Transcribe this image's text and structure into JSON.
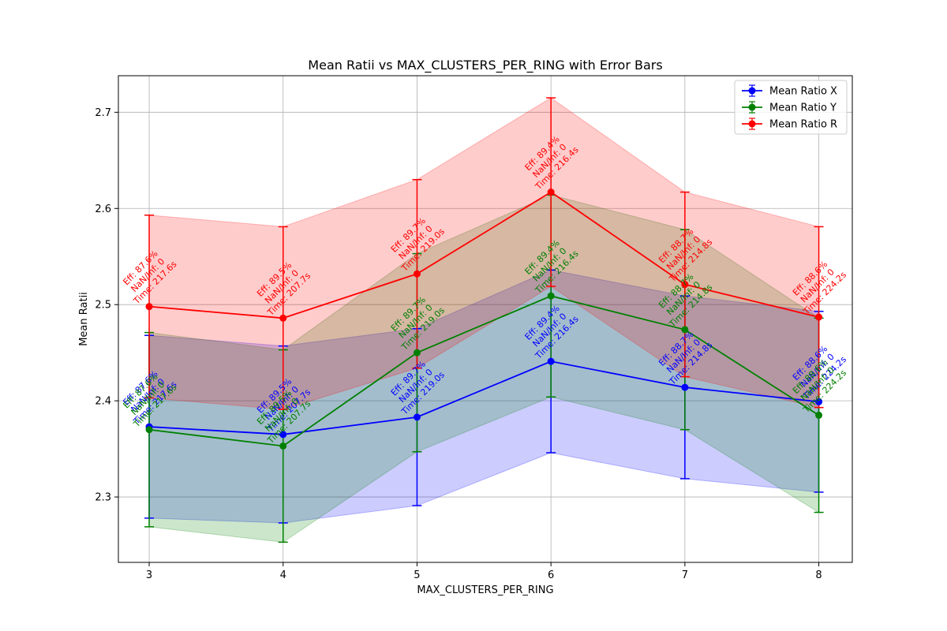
{
  "chart_data": {
    "type": "line",
    "title": "Mean Ratii vs MAX_CLUSTERS_PER_RING with Error Bars",
    "xlabel": "MAX_CLUSTERS_PER_RING",
    "ylabel": "Mean Ratii",
    "x": [
      3,
      4,
      5,
      6,
      7,
      8
    ],
    "xlim": [
      2.77,
      8.25
    ],
    "ylim": [
      2.232,
      2.738
    ],
    "xticks": [
      3,
      4,
      5,
      6,
      7,
      8
    ],
    "yticks": [
      2.3,
      2.4,
      2.5,
      2.6,
      2.7
    ],
    "ytick_labels": [
      "2.3",
      "2.4",
      "2.5",
      "2.6",
      "2.7"
    ],
    "grid": true,
    "legend_position": "top-right",
    "series": [
      {
        "name": "Mean Ratio X",
        "color": "#0000ff",
        "values": [
          2.373,
          2.365,
          2.383,
          2.441,
          2.414,
          2.399
        ],
        "errors": [
          0.095,
          0.092,
          0.092,
          0.095,
          0.095,
          0.094
        ],
        "annotations": [
          [
            "Eff: 87.6%",
            "NaN/Inf: 0",
            "Time: 217.6s"
          ],
          [
            "Eff: 89.5%",
            "NaN/Inf: 0",
            "Time: 207.7s"
          ],
          [
            "Eff: 89.7%",
            "NaN/Inf: 0",
            "Time: 219.0s"
          ],
          [
            "Eff: 89.4%",
            "NaN/Inf: 0",
            "Time: 216.4s"
          ],
          [
            "Eff: 88.7%",
            "NaN/Inf: 0",
            "Time: 214.8s"
          ],
          [
            "Eff: 88.6%",
            "NaN/Inf: 0",
            "Time: 224.2s"
          ]
        ]
      },
      {
        "name": "Mean Ratio Y",
        "color": "#008000",
        "values": [
          2.37,
          2.353,
          2.45,
          2.509,
          2.474,
          2.385
        ],
        "errors": [
          0.101,
          0.1,
          0.103,
          0.105,
          0.104,
          0.101
        ],
        "annotations": [
          [
            "Eff: 87.6%",
            "NaN/Inf: 0",
            "Time: 217.6s"
          ],
          [
            "Eff: 89.5%",
            "NaN/Inf: 0",
            "Time: 207.7s"
          ],
          [
            "Eff: 89.7%",
            "NaN/Inf: 0",
            "Time: 219.0s"
          ],
          [
            "Eff: 89.4%",
            "NaN/Inf: 0",
            "Time: 216.4s"
          ],
          [
            "Eff: 88.7%",
            "NaN/Inf: 0",
            "Time: 214.8s"
          ],
          [
            "Eff: 88.6%",
            "NaN/Inf: 0",
            "Time: 224.2s"
          ]
        ]
      },
      {
        "name": "Mean Ratio R",
        "color": "#ff0000",
        "values": [
          2.498,
          2.486,
          2.532,
          2.617,
          2.521,
          2.487
        ],
        "errors": [
          0.095,
          0.095,
          0.098,
          0.098,
          0.096,
          0.094
        ],
        "annotations": [
          [
            "Eff: 87.6%",
            "NaN/Inf: 0",
            "Time: 217.6s"
          ],
          [
            "Eff: 89.5%",
            "NaN/Inf: 0",
            "Time: 207.7s"
          ],
          [
            "Eff: 89.7%",
            "NaN/Inf: 0",
            "Time: 219.0s"
          ],
          [
            "Eff: 89.4%",
            "NaN/Inf: 0",
            "Time: 216.4s"
          ],
          [
            "Eff: 88.7%",
            "NaN/Inf: 0",
            "Time: 214.8s"
          ],
          [
            "Eff: 88.6%",
            "NaN/Inf: 0",
            "Time: 224.2s"
          ]
        ]
      }
    ]
  }
}
